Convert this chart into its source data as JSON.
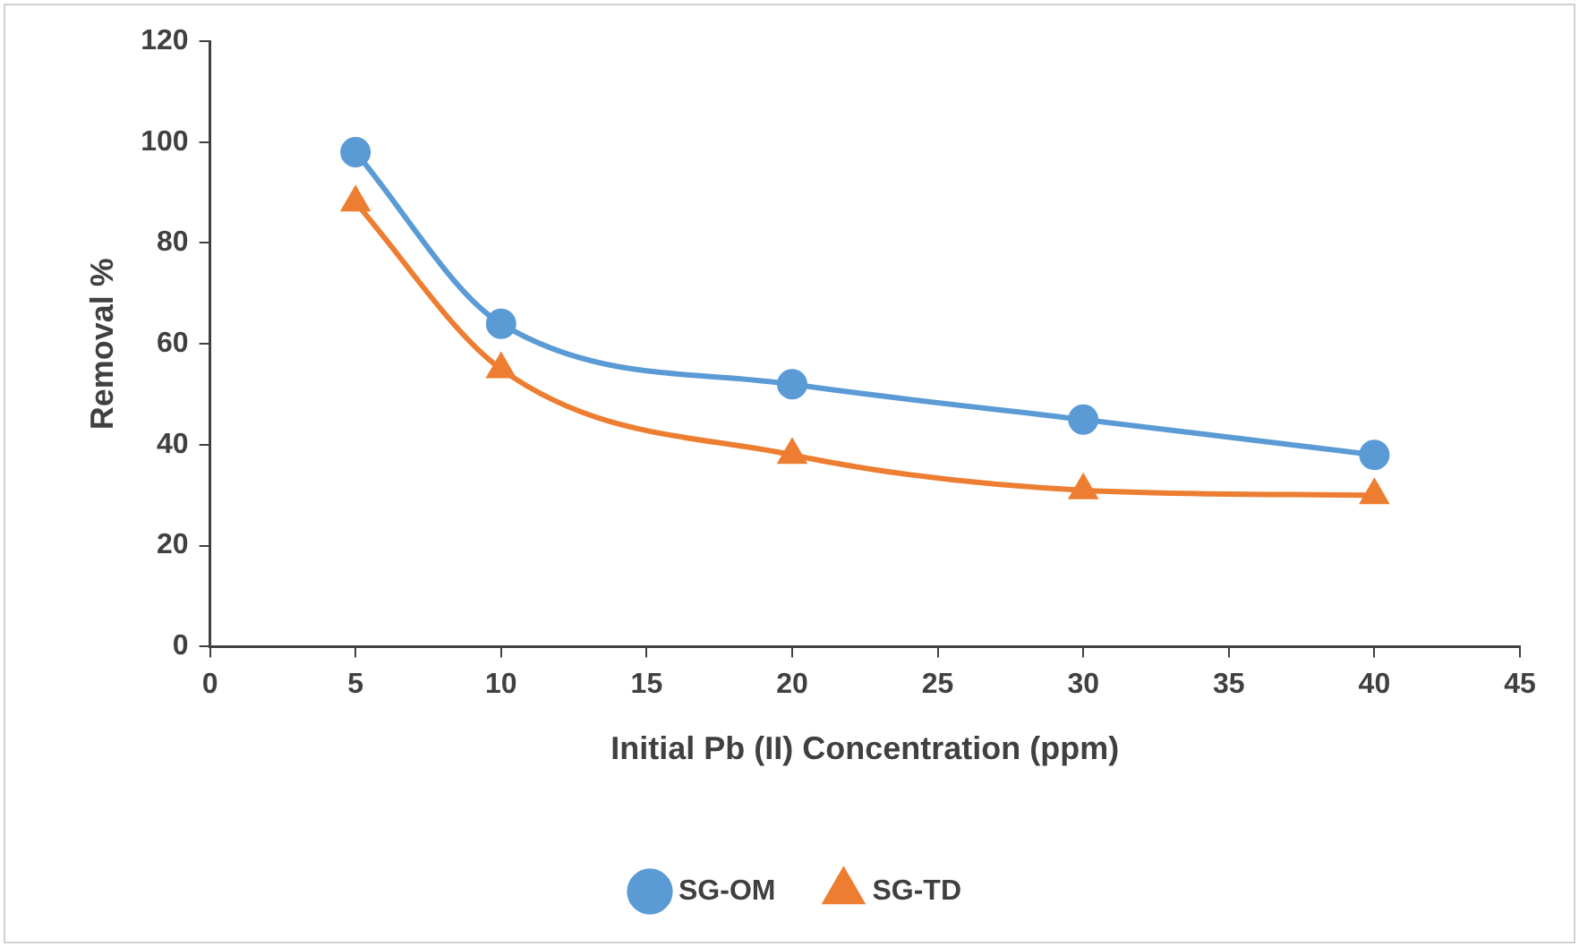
{
  "chart_data": {
    "type": "line",
    "xlabel": "Initial Pb (II) Concentration (ppm)",
    "ylabel": "Removal %",
    "x": [
      5,
      10,
      20,
      30,
      40
    ],
    "series": [
      {
        "name": "SG-OM",
        "color": "#5b9bd5",
        "values": [
          98,
          64,
          52,
          45,
          38
        ],
        "marker": "circle"
      },
      {
        "name": "SG-TD",
        "color": "#ed7d31",
        "values": [
          88,
          55,
          38,
          31,
          30
        ],
        "marker": "triangle"
      }
    ],
    "xlim": [
      0,
      45
    ],
    "xticks": [
      0,
      5,
      10,
      15,
      20,
      25,
      30,
      35,
      40,
      45
    ],
    "ylim": [
      0,
      120
    ],
    "yticks": [
      0,
      20,
      40,
      60,
      80,
      100,
      120
    ],
    "grid": false,
    "legend": "bottom",
    "line_style": "solid"
  }
}
